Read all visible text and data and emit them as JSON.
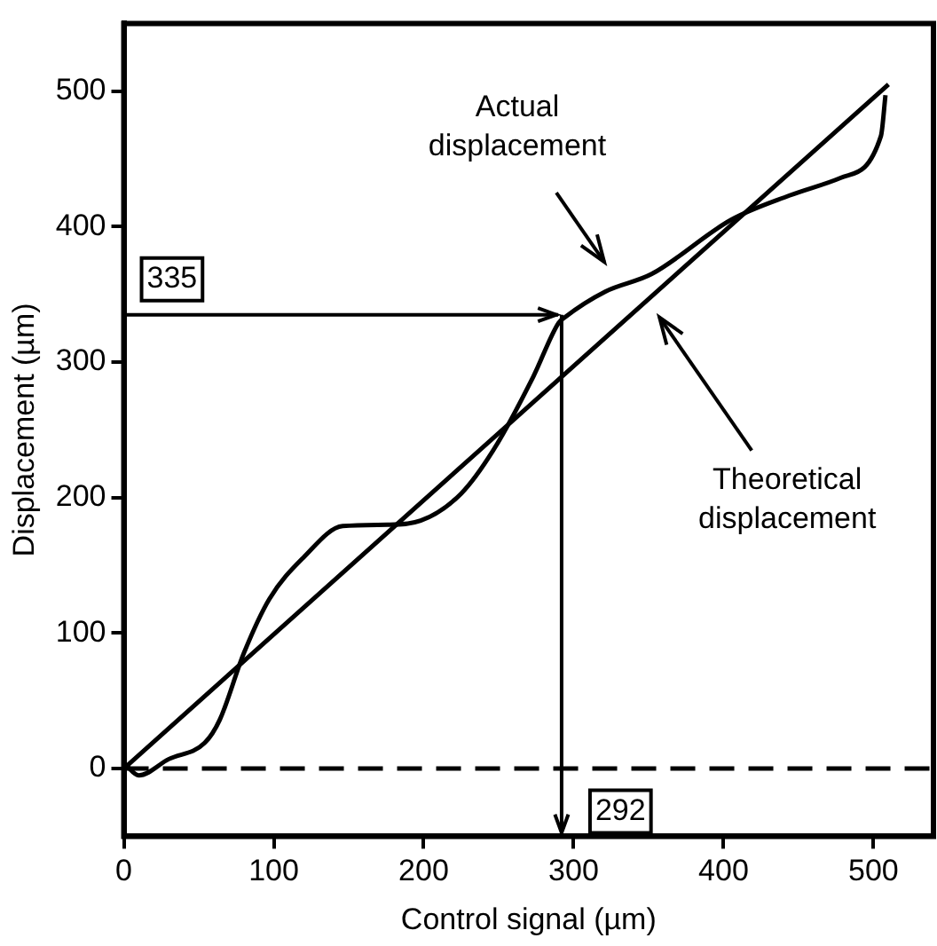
{
  "chart_data": {
    "type": "line",
    "xlabel": "Control signal (µm)",
    "ylabel": "Displacement (µm)",
    "xlim": [
      0,
      540
    ],
    "ylim": [
      -50,
      550
    ],
    "xticks": [
      0,
      100,
      200,
      300,
      400,
      500
    ],
    "yticks": [
      0,
      100,
      200,
      300,
      400,
      500
    ],
    "marker": "none",
    "line_style": "solid",
    "series": [
      {
        "color": "#000000",
        "x": [
          1,
          10,
          30,
          54,
          64,
          80,
          97,
          120,
          146,
          176,
          198,
          225,
          247,
          273,
          290,
          294,
          321,
          352,
          405,
          444,
          478,
          505,
          508
        ],
        "values": [
          3,
          -5,
          7,
          19,
          36,
          85,
          125,
          156,
          179,
          180,
          183,
          203,
          236,
          289,
          329,
          333,
          352,
          365,
          405,
          423,
          436,
          467,
          497
        ]
      },
      {
        "color": "#000000",
        "x": [
          0,
          510
        ],
        "values": [
          0,
          505
        ]
      }
    ],
    "ref_lines": [
      {
        "axis": "y",
        "value": 0,
        "line_style": "dashed",
        "color": "#000000"
      }
    ],
    "annotations": [
      {
        "text": "335",
        "x": 292,
        "y": 335
      },
      {
        "text": "292",
        "x": 292,
        "y": 335
      },
      "Actual displacement",
      "Theoretical displacement"
    ]
  }
}
